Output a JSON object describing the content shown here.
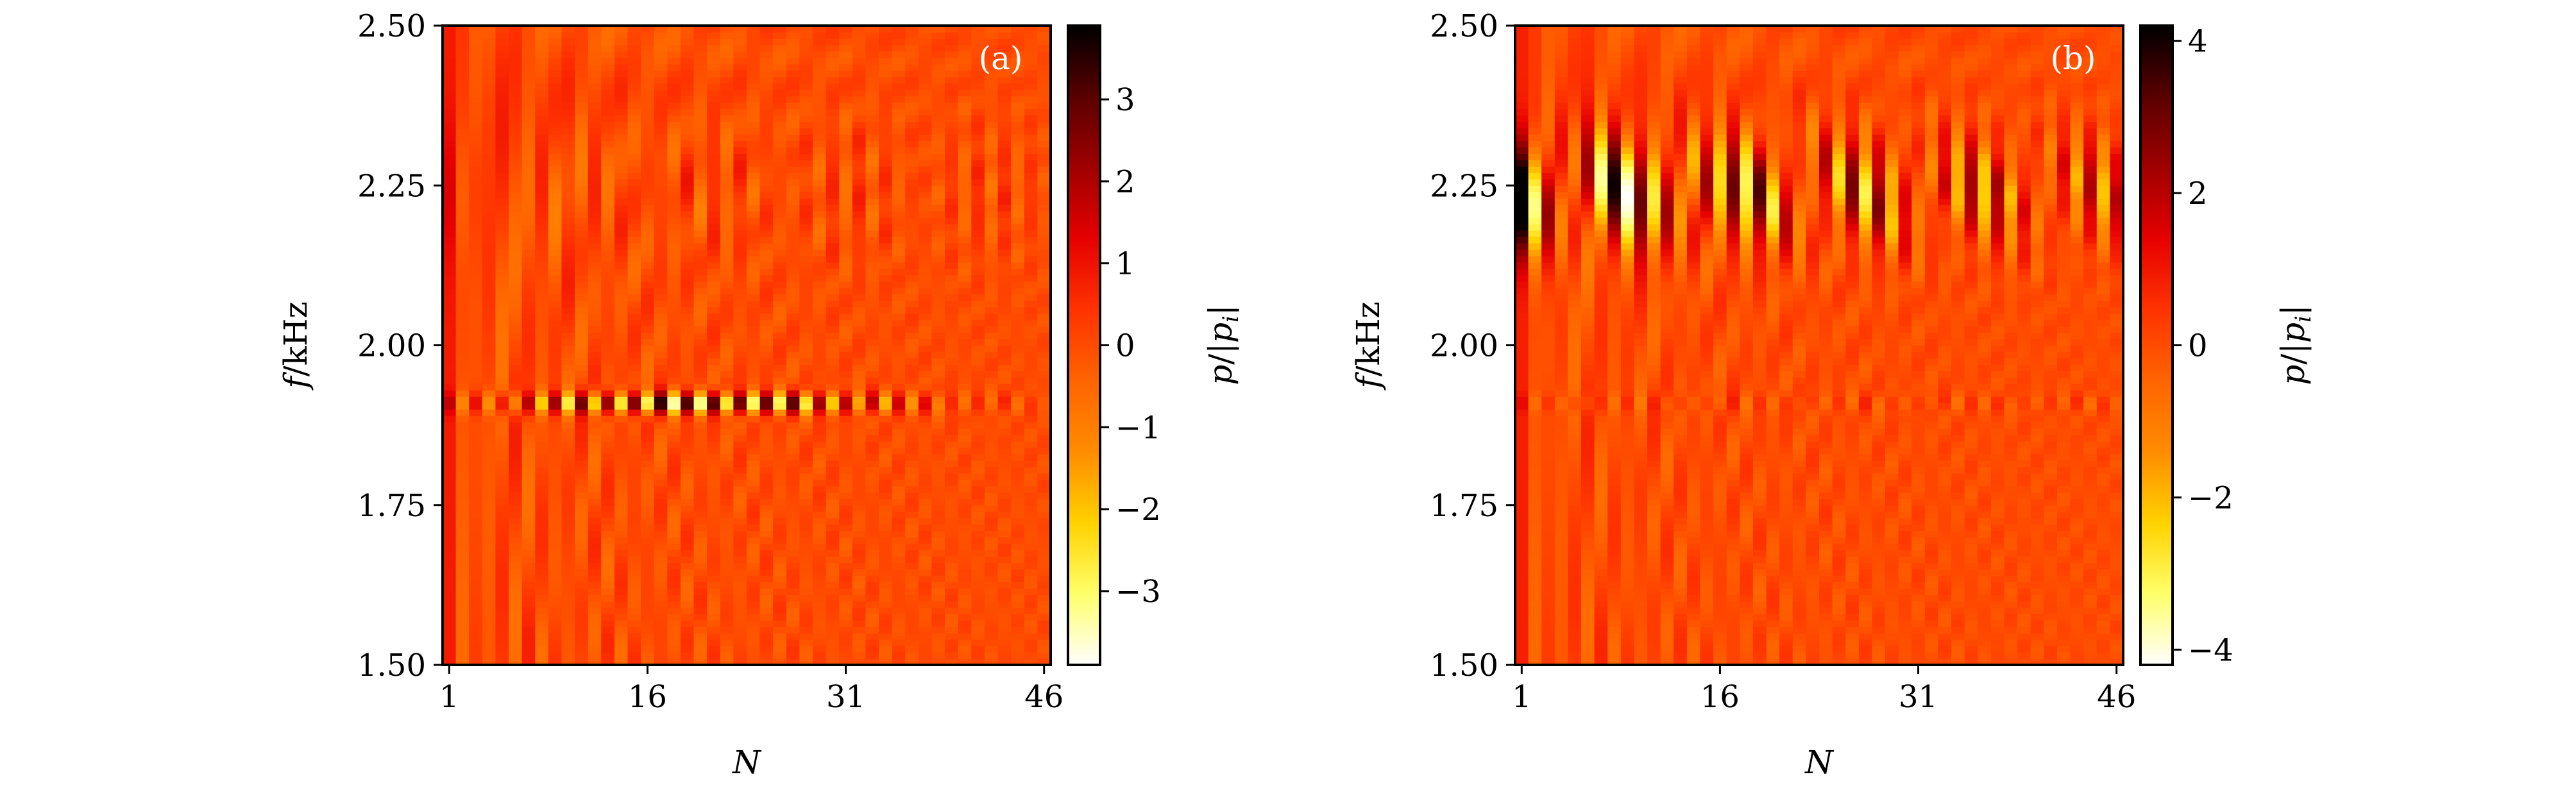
{
  "colors": {
    "colormap": [
      "#ffffff",
      "#ffff6a",
      "#ffd200",
      "#ff8c00",
      "#ff6400",
      "#ff3200",
      "#e60000",
      "#a00000",
      "#5a0000",
      "#000000"
    ],
    "axis": "#000000",
    "background": "#ffffff"
  },
  "chart_data": [
    {
      "type": "heatmap",
      "panel_label": "(a)",
      "xlabel": "N",
      "ylabel": "f/kHz",
      "colorbar_label": "p/|p_i|",
      "xlim": [
        1,
        46
      ],
      "ylim": [
        1.5,
        2.5
      ],
      "x_ticks": [
        "1",
        "16",
        "31",
        "46"
      ],
      "y_ticks": [
        "1.50",
        "1.75",
        "2.00",
        "2.25",
        "2.50"
      ],
      "colorbar_range": [
        -3.9,
        3.9
      ],
      "colorbar_ticks": [
        "3",
        "2",
        "1",
        "0",
        "−1",
        "−2",
        "−3"
      ],
      "colorbar_tick_values": [
        3,
        2,
        1,
        0,
        -1,
        -2,
        -3
      ],
      "features": {
        "resonance_band_f_kHz": 1.91,
        "resonance_band_peak_N": 20,
        "upper_band_f_kHz": 2.24,
        "upper_band_strength": "weak"
      }
    },
    {
      "type": "heatmap",
      "panel_label": "(b)",
      "xlabel": "N",
      "ylabel": "f/kHz",
      "colorbar_label": "p/|p_i|",
      "xlim": [
        1,
        46
      ],
      "ylim": [
        1.5,
        2.5
      ],
      "x_ticks": [
        "1",
        "16",
        "31",
        "46"
      ],
      "y_ticks": [
        "1.50",
        "1.75",
        "2.00",
        "2.25",
        "2.50"
      ],
      "colorbar_range": [
        -4.2,
        4.2
      ],
      "colorbar_ticks": [
        "4",
        "2",
        "0",
        "−2",
        "−4"
      ],
      "colorbar_tick_values": [
        4,
        2,
        0,
        -2,
        -4
      ],
      "features": {
        "resonance_band_f_kHz": 2.24,
        "resonance_band_peak_N": 3,
        "lower_band_f_kHz": 1.91,
        "lower_band_strength": "weak"
      }
    }
  ]
}
